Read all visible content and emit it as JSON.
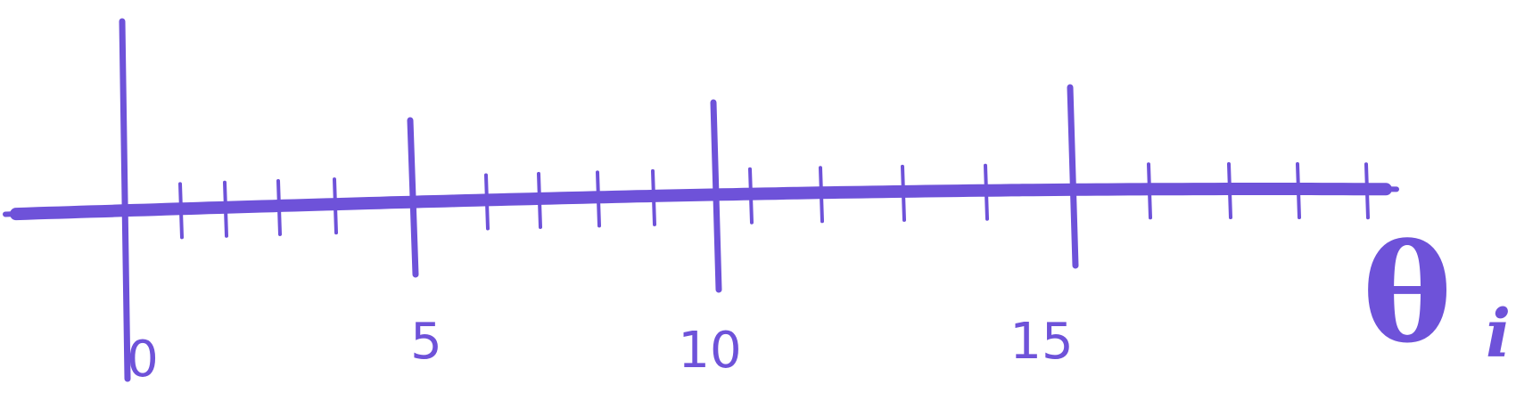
{
  "colors": {
    "ink": "#6E52D9",
    "background": "#ffffff"
  },
  "number_line": {
    "start": 0,
    "end": 20,
    "minor_step": 1,
    "major_step": 5,
    "labels": [
      {
        "value": 0,
        "text": "0"
      },
      {
        "value": 5,
        "text": "5"
      },
      {
        "value": 10,
        "text": "10"
      },
      {
        "value": 15,
        "text": "15"
      }
    ],
    "end_label": {
      "value": 20,
      "main": "θ",
      "subscript": "i"
    }
  }
}
